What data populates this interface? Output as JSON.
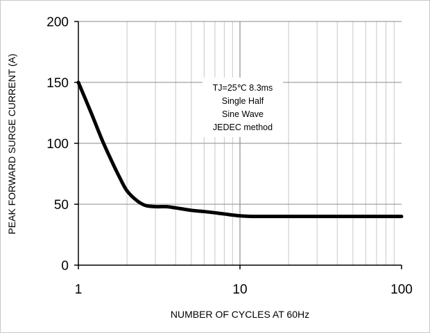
{
  "chart_data": {
    "type": "line",
    "title": "",
    "xlabel": "NUMBER OF CYCLES AT 60Hz",
    "ylabel": "PEAK FORWARD SURGE CURRENT (A)",
    "x_scale": "log",
    "xlim": [
      1,
      100
    ],
    "ylim": [
      0,
      200
    ],
    "x_ticks": [
      "1",
      "10",
      "100"
    ],
    "y_ticks": [
      "0",
      "50",
      "100",
      "150",
      "200"
    ],
    "grid": true,
    "legend": "none",
    "annotation": [
      "TJ=25℃ 8.3ms",
      "Single Half",
      "Sine Wave",
      "JEDEC method"
    ],
    "series": [
      {
        "color": "#000000",
        "x": [
          1,
          1.2,
          1.4,
          1.6,
          1.8,
          2,
          2.3,
          2.6,
          3,
          3.5,
          4,
          5,
          6,
          7,
          8,
          10,
          12,
          15,
          20,
          30,
          50,
          70,
          100
        ],
        "y": [
          150,
          125,
          103,
          86,
          72,
          61,
          53,
          49,
          48,
          48,
          47,
          45,
          44,
          43,
          42,
          40.5,
          40,
          40,
          40,
          40,
          40,
          40,
          40
        ]
      }
    ]
  }
}
